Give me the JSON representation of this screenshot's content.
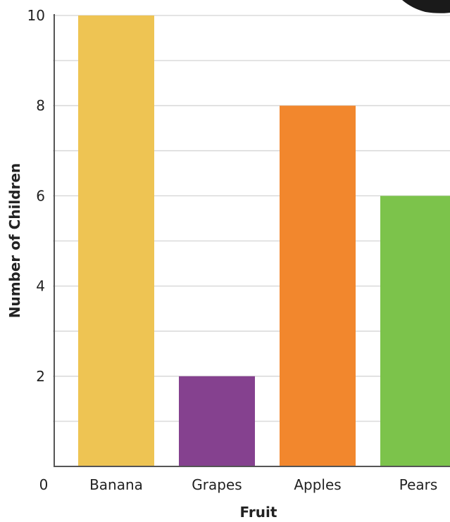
{
  "chart_data": {
    "type": "bar",
    "title": "",
    "xlabel": "Fruit",
    "ylabel": "Number of Children",
    "categories": [
      "Banana",
      "Grapes",
      "Apples",
      "Pears"
    ],
    "values": [
      10,
      2,
      8,
      6
    ],
    "colors": [
      "#EEC453",
      "#85418F",
      "#F2872D",
      "#7CC34B"
    ],
    "ylim": [
      0,
      10
    ],
    "y_ticks": [
      2,
      4,
      6,
      8,
      10
    ],
    "origin_label": "0",
    "grid": true,
    "minor_grid_step": 1,
    "legend": "none"
  }
}
